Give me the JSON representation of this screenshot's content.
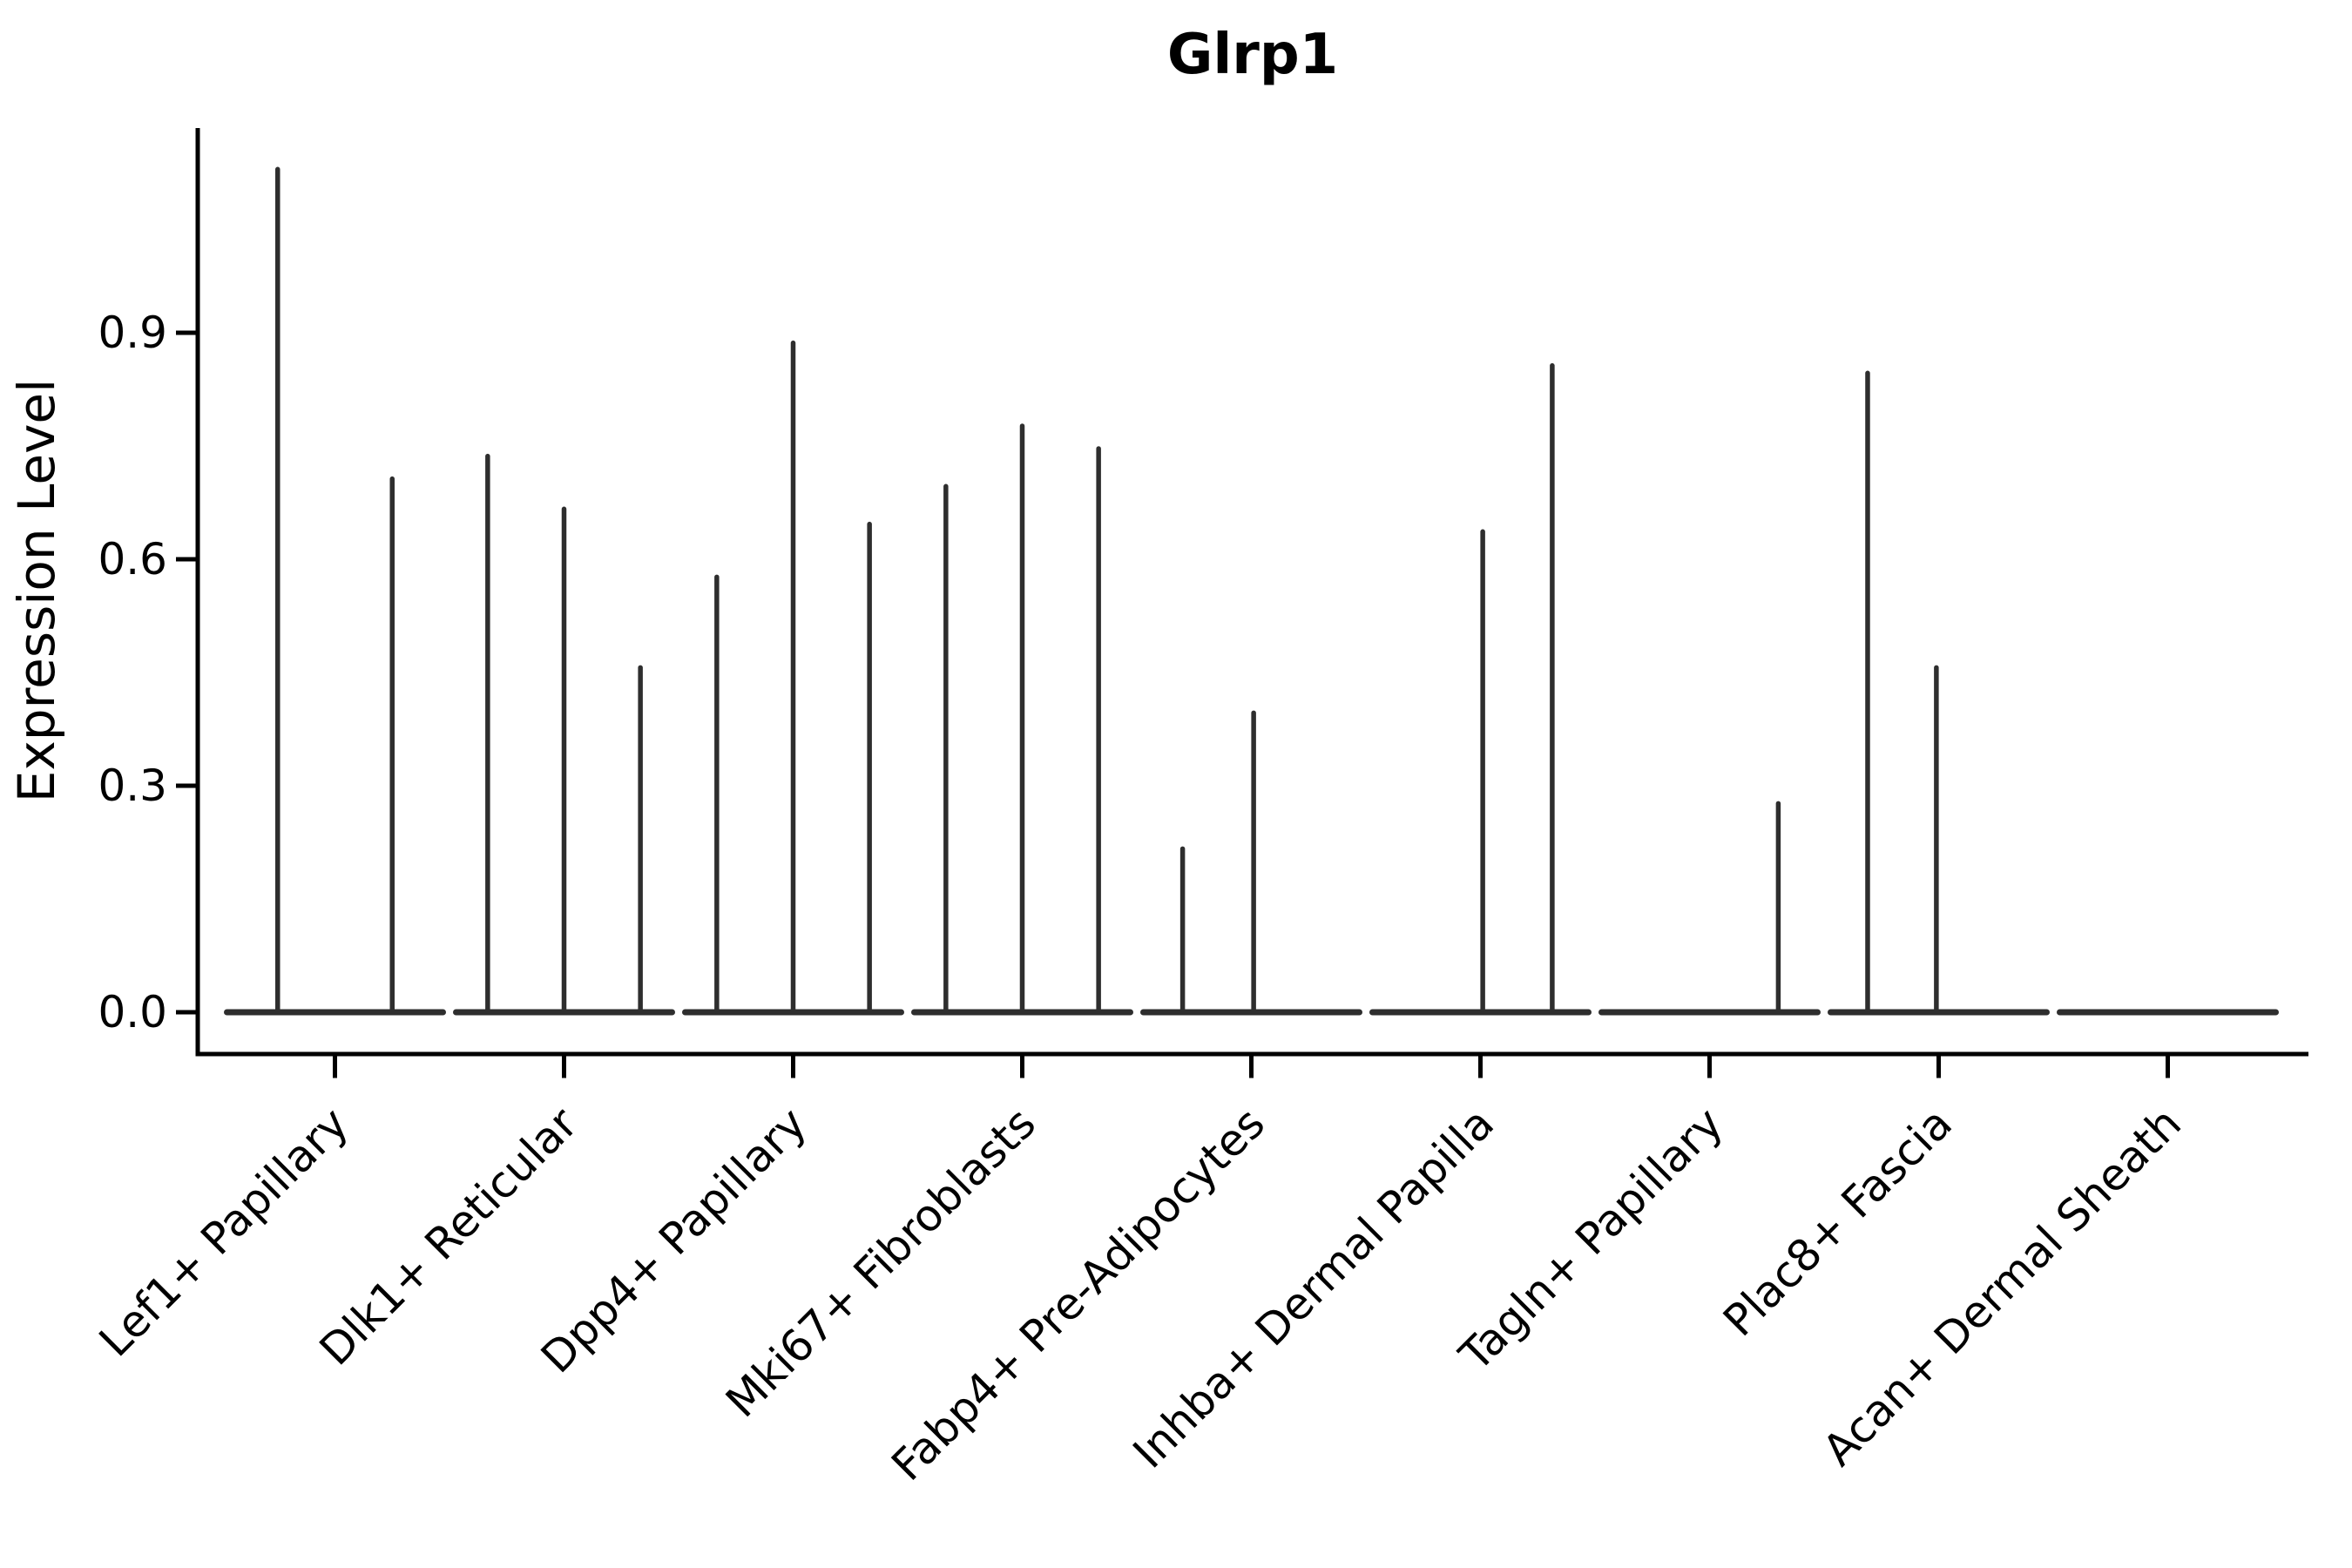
{
  "chart_data": {
    "type": "violin",
    "title": "Glrp1",
    "xlabel": "",
    "ylabel": "Expression Level",
    "grid": false,
    "legend": "none",
    "ylim": [
      -0.055,
      1.17
    ],
    "yticks": [
      {
        "label": "0.0",
        "value": 0.0
      },
      {
        "label": "0.3",
        "value": 0.3
      },
      {
        "label": "0.6",
        "value": 0.6
      },
      {
        "label": "0.9",
        "value": 0.9
      }
    ],
    "description": "Sparse expression violins: each cell-type slot shows a flat violin baseline at 0 plus thin needle spikes rising to the maximum expression of each sub-violin (dodged sub-groups). pos is the horizontal offset of each spike as a fraction of the category slot width.",
    "baseline_value": 0.0,
    "baseline_width_frac": 0.92,
    "categories": [
      {
        "label": "Lef1+ Papillary",
        "spikes": [
          {
            "pos": -0.25,
            "value": 1.12
          },
          {
            "pos": 0.25,
            "value": 0.71
          }
        ]
      },
      {
        "label": "Dlk1+ Reticular",
        "spikes": [
          {
            "pos": -0.3333,
            "value": 0.74
          },
          {
            "pos": 0.0,
            "value": 0.67
          },
          {
            "pos": 0.3333,
            "value": 0.46
          }
        ]
      },
      {
        "label": "Dpp4+ Papillary",
        "spikes": [
          {
            "pos": -0.3333,
            "value": 0.58
          },
          {
            "pos": 0.0,
            "value": 0.89
          },
          {
            "pos": 0.3333,
            "value": 0.65
          }
        ]
      },
      {
        "label": "Mki67+ Fibroblasts",
        "spikes": [
          {
            "pos": -0.3333,
            "value": 0.7
          },
          {
            "pos": 0.0,
            "value": 0.78
          },
          {
            "pos": 0.3333,
            "value": 0.75
          }
        ]
      },
      {
        "label": "Fabp4+ Pre-Adipocytes",
        "spikes": [
          {
            "pos": -0.3,
            "value": 0.22
          },
          {
            "pos": 0.01,
            "value": 0.4
          }
        ]
      },
      {
        "label": "Inhba+ Dermal Papilla",
        "spikes": [
          {
            "pos": 0.01,
            "value": 0.64
          },
          {
            "pos": 0.3133,
            "value": 0.86
          }
        ]
      },
      {
        "label": "Tagln+ Papillary",
        "spikes": [
          {
            "pos": 0.3,
            "value": 0.28
          }
        ]
      },
      {
        "label": "Plac8+ Fascia",
        "spikes": [
          {
            "pos": -0.31,
            "value": 0.85
          },
          {
            "pos": -0.01,
            "value": 0.46
          }
        ]
      },
      {
        "label": "Acan+ Dermal Sheath",
        "spikes": []
      }
    ],
    "colors": {
      "ink": "#000000",
      "violin": "#2e2e2e",
      "background": "#ffffff"
    }
  }
}
